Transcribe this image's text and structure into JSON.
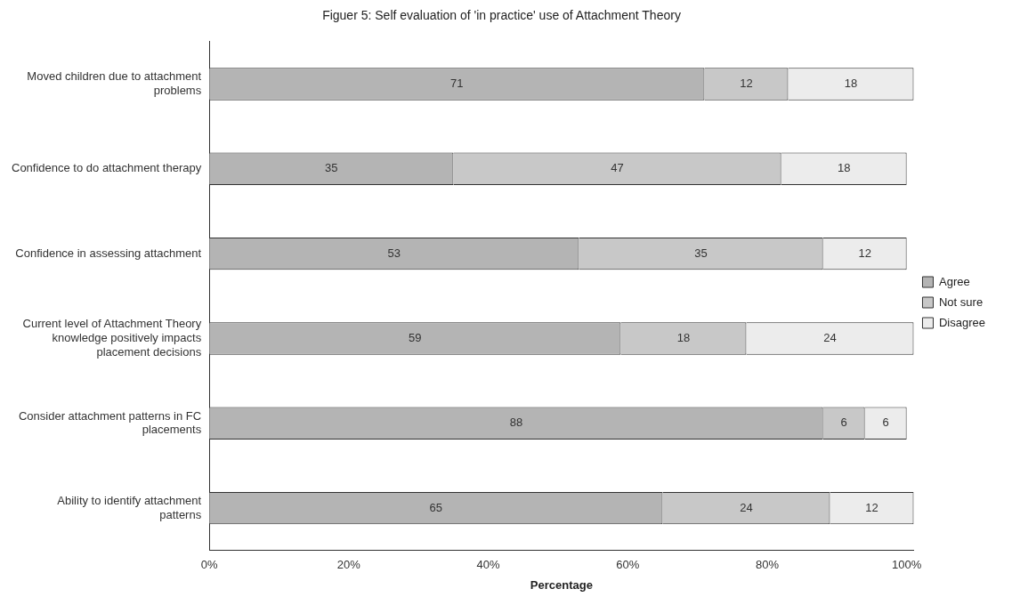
{
  "chart_data": {
    "type": "bar",
    "title": "Figuer 5: Self evaluation of 'in practice' use of Attachment Theory",
    "xlabel": "Percentage",
    "orientation": "horizontal",
    "stacked": true,
    "data_labels": true,
    "legend": "right",
    "grid": false,
    "categories": [
      "Moved children due to attachment problems",
      "Confidence to do attachment therapy",
      "Confidence in assessing attachment",
      "Current level of Attachment Theory knowledge positively impacts placement decisions",
      "Consider attachment patterns in FC placements",
      "Ability to identify attachment patterns"
    ],
    "series": [
      {
        "name": "Agree",
        "color": "#b4b4b4",
        "values": [
          71,
          35,
          53,
          59,
          88,
          65
        ]
      },
      {
        "name": "Not sure",
        "color": "#c8c8c8",
        "values": [
          12,
          47,
          35,
          18,
          6,
          24
        ]
      },
      {
        "name": "Disagree",
        "color": "#ececec",
        "values": [
          18,
          18,
          12,
          24,
          6,
          12
        ]
      }
    ],
    "xlim": [
      0,
      101
    ],
    "xticks": [
      {
        "value": 0,
        "label": "0%"
      },
      {
        "value": 20,
        "label": "20%"
      },
      {
        "value": 40,
        "label": "40%"
      },
      {
        "value": 60,
        "label": "60%"
      },
      {
        "value": 80,
        "label": "80%"
      },
      {
        "value": 100,
        "label": "100%"
      }
    ]
  }
}
